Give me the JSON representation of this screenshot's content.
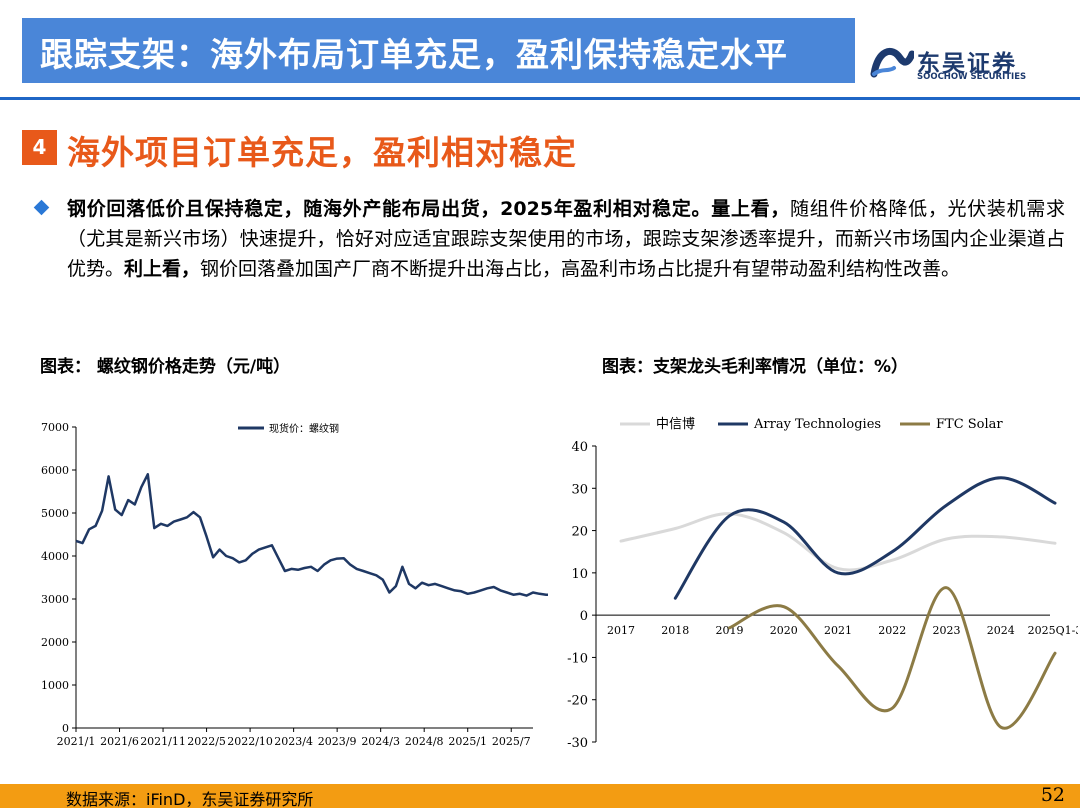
{
  "header": {
    "title": "跟踪支架：海外布局订单充足，盈利保持稳定水平",
    "logo_cn": "东吴证券",
    "logo_en": "SOOCHOW SECURITIES"
  },
  "section": {
    "number": "4",
    "title": "海外项目订单充足，盈利相对稳定"
  },
  "body": {
    "p_bold1": "钢价回落低价且保持稳定，随海外产能布局出货，2025年盈利相对稳定。",
    "p_bold2": "量上看，",
    "p_text1": "随组件价格降低，光伏装机需求（尤其是新兴市场）快速提升，恰好对应适宜跟踪支架使用的市场，跟踪支架渗透率提升，而新兴市场国内企业渠道占优势。",
    "p_bold3": "利上看，",
    "p_text2": "钢价回落叠加国产厂商不断提升出海占比，高盈利市场占比提升有望带动盈利结构性改善。"
  },
  "captions": {
    "left": "图表： 螺纹钢价格走势（元/吨）",
    "right": "图表：支架龙头毛利率情况（单位：%）"
  },
  "footer": {
    "source": "数据来源：iFinD，东吴证券研究所",
    "page": "52"
  },
  "colors": {
    "title_bg": "#4a86d8",
    "accent_orange": "#e8591a",
    "rule_blue": "#1f66c6",
    "footer_bg": "#f39c12",
    "series_dark": "#1f3864",
    "series_light": "#d9d9d9",
    "series_olive": "#8c7b45"
  },
  "chart_data": [
    {
      "type": "line",
      "title": "螺纹钢价格走势（元/吨）",
      "legend": "现货价：螺纹钢",
      "x_ticks": [
        "2021/1",
        "2021/6",
        "2021/11",
        "2022/5",
        "2022/10",
        "2023/4",
        "2023/9",
        "2024/3",
        "2024/8",
        "2025/1",
        "2025/7"
      ],
      "y_ticks": [
        "0",
        "1000",
        "2000",
        "3000",
        "4000",
        "5000",
        "6000",
        "7000"
      ],
      "ylim": [
        0,
        7000
      ],
      "x": [
        0,
        0.15,
        0.3,
        0.45,
        0.6,
        0.75,
        0.9,
        1.05,
        1.2,
        1.35,
        1.5,
        1.65,
        1.8,
        1.95,
        2.1,
        2.25,
        2.4,
        2.55,
        2.7,
        2.85,
        3.0,
        3.15,
        3.3,
        3.45,
        3.6,
        3.75,
        3.9,
        4.05,
        4.2,
        4.35,
        4.5,
        4.65,
        4.8,
        4.95,
        5.1,
        5.25,
        5.4,
        5.55,
        5.7,
        5.85,
        6.0,
        6.15,
        6.3,
        6.45,
        6.6,
        6.75,
        6.9,
        7.05,
        7.2,
        7.35,
        7.5,
        7.65,
        7.8,
        7.95,
        8.1,
        8.25,
        8.4,
        8.55,
        8.7,
        8.85,
        9.0,
        9.15,
        9.3,
        9.45,
        9.6,
        9.75,
        9.9,
        10.05,
        10.2,
        10.35,
        10.5,
        10.65,
        10.8,
        10.95,
        11.1,
        11.25
      ],
      "values": [
        4350,
        4300,
        4620,
        4700,
        5050,
        5850,
        5080,
        4950,
        5300,
        5200,
        5600,
        5900,
        4650,
        4750,
        4700,
        4800,
        4850,
        4900,
        5020,
        4900,
        4450,
        3970,
        4150,
        4000,
        3950,
        3850,
        3900,
        4050,
        4150,
        4200,
        4250,
        3950,
        3650,
        3700,
        3680,
        3720,
        3750,
        3650,
        3800,
        3900,
        3940,
        3950,
        3800,
        3700,
        3650,
        3600,
        3550,
        3450,
        3150,
        3300,
        3750,
        3350,
        3250,
        3380,
        3320,
        3350,
        3300,
        3250,
        3200,
        3180,
        3120,
        3150,
        3200,
        3250,
        3280,
        3200,
        3150,
        3100,
        3120,
        3080,
        3150,
        3120,
        3100,
        3100,
        3110,
        3100
      ]
    },
    {
      "type": "line",
      "title": "支架龙头毛利率情况（单位：%）",
      "categories": [
        "2017",
        "2018",
        "2019",
        "2020",
        "2021",
        "2022",
        "2023",
        "2024",
        "2025Q1-3"
      ],
      "ylim": [
        -30,
        40
      ],
      "y_ticks": [
        "-30",
        "-20",
        "-10",
        "0",
        "10",
        "20",
        "30",
        "40"
      ],
      "series": [
        {
          "name": "中信博",
          "color": "#d9d9d9",
          "values": [
            17.5,
            20.5,
            24,
            19.5,
            11,
            13,
            18,
            18.5,
            17
          ]
        },
        {
          "name": "Array Technologies",
          "color": "#1f3864",
          "values": [
            null,
            4,
            23.5,
            22,
            10,
            15,
            26,
            32.5,
            26.5
          ]
        },
        {
          "name": "FTC Solar",
          "color": "#8c7b45",
          "values": [
            null,
            null,
            -3,
            2,
            -12,
            -22,
            6.5,
            -26.5,
            -9
          ]
        }
      ]
    }
  ]
}
